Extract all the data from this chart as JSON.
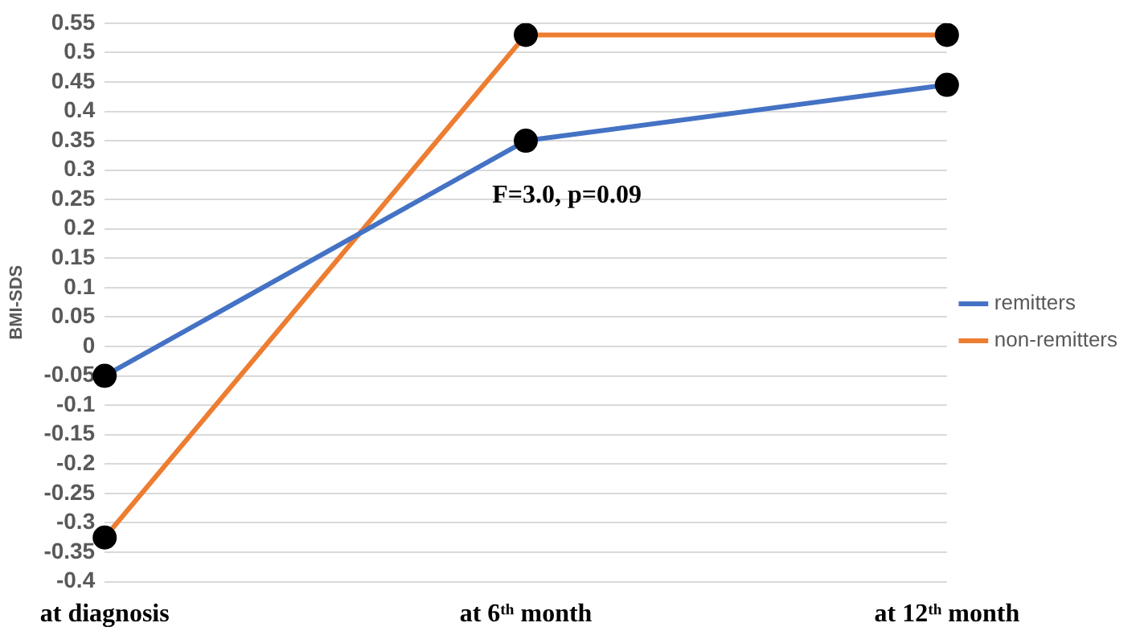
{
  "chart_data": {
    "type": "line",
    "ylabel": "BMI-SDS",
    "categories": [
      "at diagnosis",
      "at 6ᵗʰ month",
      "at 12ᵗʰ month"
    ],
    "series": [
      {
        "name": "remitters",
        "color": "#4472c4",
        "values": [
          -0.05,
          0.35,
          0.445
        ]
      },
      {
        "name": "non-remitters",
        "color": "#ed7d31",
        "values": [
          -0.325,
          0.53,
          0.53
        ]
      }
    ],
    "ylim": [
      -0.4,
      0.55
    ],
    "yticks": [
      -0.4,
      -0.35,
      -0.3,
      -0.25,
      -0.2,
      -0.15,
      -0.1,
      -0.05,
      0,
      0.05,
      0.1,
      0.15,
      0.2,
      0.25,
      0.3,
      0.35,
      0.4,
      0.45,
      0.5,
      0.55
    ],
    "grid": "y",
    "legend": "right",
    "marker": "circle",
    "line_style": "solid",
    "annotations": [
      "F=3.0, p=0.09"
    ]
  }
}
